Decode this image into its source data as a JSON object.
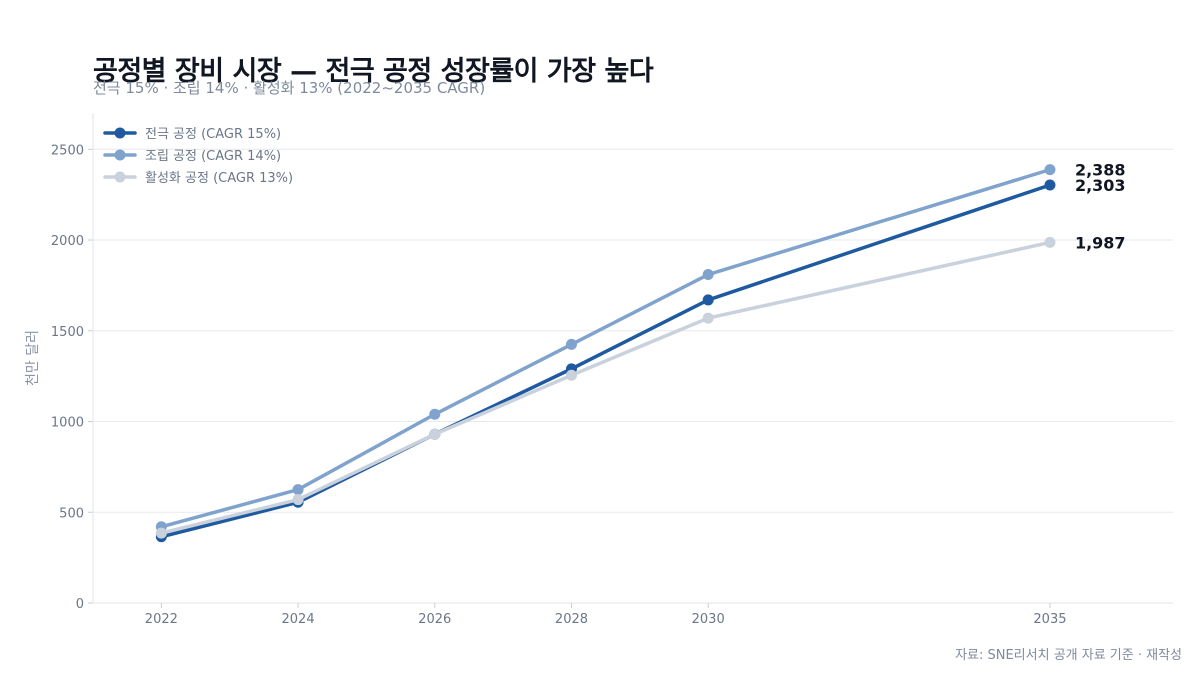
{
  "header": {
    "title": "공정별 장비 시장 — 전극 공정 성장률이 가장 높다",
    "subtitle": "전극 15% · 조립 14% · 활성화 13% (2022~2035 CAGR)"
  },
  "footer": {
    "source": "자료: SNE리서치 공개 자료 기준 · 재작성"
  },
  "chart_data": {
    "type": "line",
    "title": "공정별 장비 시장 — 전극 공정 성장률이 가장 높다",
    "subtitle": "전극 15% · 조립 14% · 활성화 13% (2022~2035 CAGR)",
    "xlabel": "",
    "ylabel": "천만 달러",
    "x": [
      2022,
      2024,
      2026,
      2028,
      2030,
      2035
    ],
    "xticks": [
      "2022",
      "2024",
      "2026",
      "2028",
      "2030",
      "2035"
    ],
    "ylim": [
      0,
      2700
    ],
    "yticks": [
      0,
      500,
      1000,
      1500,
      2000,
      2500
    ],
    "xlim": [
      2021,
      2036.8
    ],
    "grid": "horizontal",
    "legend_position": "top-left",
    "series": [
      {
        "name": "전극 공정 (CAGR 15%)",
        "color": "#1f5aa0",
        "values": [
          365,
          555,
          930,
          1290,
          1670,
          2303
        ],
        "end_label": "2,303"
      },
      {
        "name": "조립 공정 (CAGR 14%)",
        "color": "#7fa3cc",
        "values": [
          420,
          625,
          1040,
          1425,
          1810,
          2388
        ],
        "end_label": "2,388"
      },
      {
        "name": "활성화 공정 (CAGR 13%)",
        "color": "#c9d1dc",
        "values": [
          385,
          570,
          930,
          1255,
          1570,
          1987
        ],
        "end_label": "1,987"
      }
    ]
  }
}
